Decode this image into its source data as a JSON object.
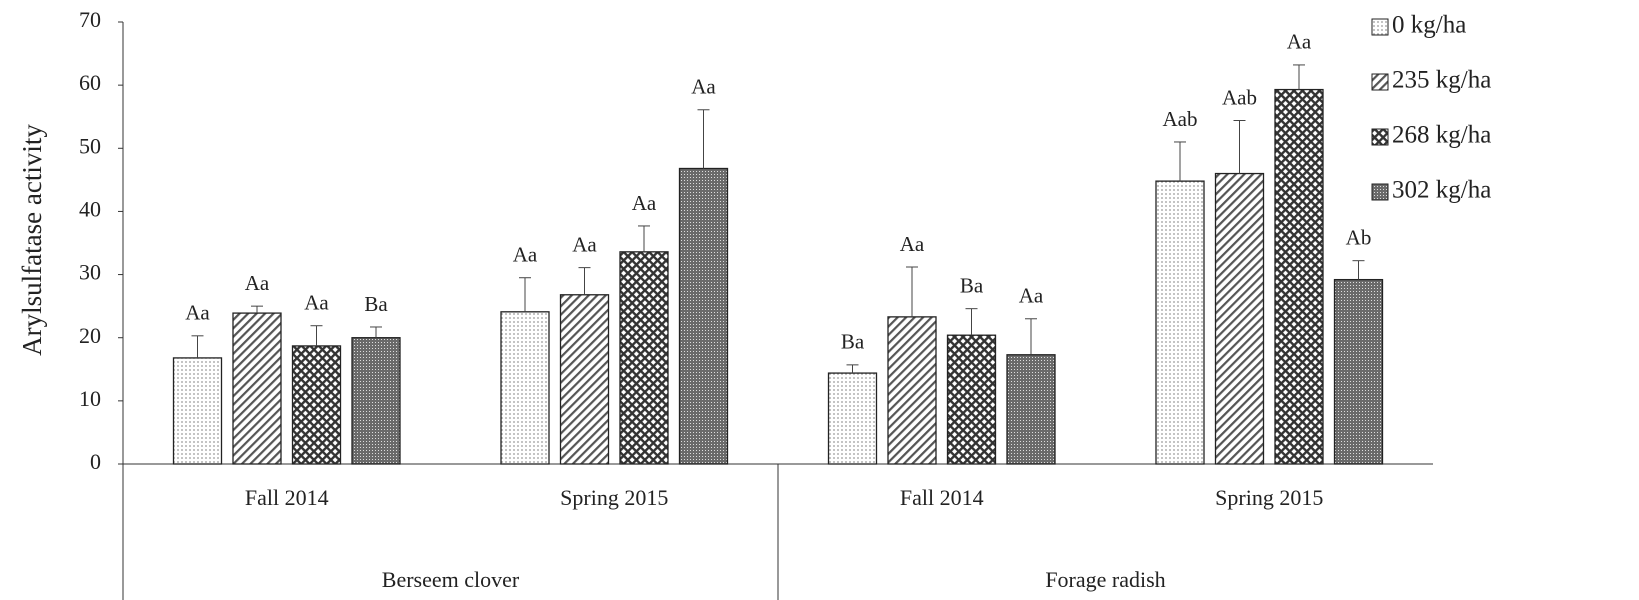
{
  "chart_data": {
    "type": "bar",
    "y_label": "Arylsulfatase activity",
    "categories": [
      "Fall 2014",
      "Spring 2015",
      "Fall 2014",
      "Spring 2015"
    ],
    "groups": [
      "Berseem clover",
      "Forage radish"
    ],
    "ylim": [
      0,
      70
    ],
    "yticks": [
      0,
      10,
      20,
      30,
      40,
      50,
      60,
      70
    ],
    "legend": "right",
    "series": [
      {
        "name": "0 kg/ha",
        "color": "#9a9a9a",
        "pattern": "dots",
        "values": [
          16.8,
          24.1,
          14.4,
          44.8
        ],
        "errors": [
          3.5,
          5.4,
          1.3,
          6.2
        ],
        "letters": [
          "Aa",
          "Aa",
          "Ba",
          "Aab"
        ]
      },
      {
        "name": "235 kg/ha",
        "color": "#555555",
        "pattern": "hatch",
        "values": [
          23.9,
          26.8,
          23.3,
          46.0
        ],
        "errors": [
          1.1,
          4.3,
          7.9,
          8.4
        ],
        "letters": [
          "Aa",
          "Aa",
          "Aa",
          "Aab"
        ]
      },
      {
        "name": "268 kg/ha",
        "color": "#333333",
        "pattern": "cross",
        "values": [
          18.7,
          33.6,
          20.4,
          59.3
        ],
        "errors": [
          3.2,
          4.1,
          4.2,
          3.9
        ],
        "letters": [
          "Aa",
          "Aa",
          "Ba",
          "Aa"
        ]
      },
      {
        "name": "302 kg/ha",
        "color": "#6a6a6a",
        "pattern": "grid",
        "values": [
          20.0,
          46.8,
          17.3,
          29.2
        ],
        "errors": [
          1.7,
          9.3,
          5.7,
          3.0
        ],
        "letters": [
          "Ba",
          "Aa",
          "Aa",
          "Ab"
        ]
      }
    ]
  }
}
